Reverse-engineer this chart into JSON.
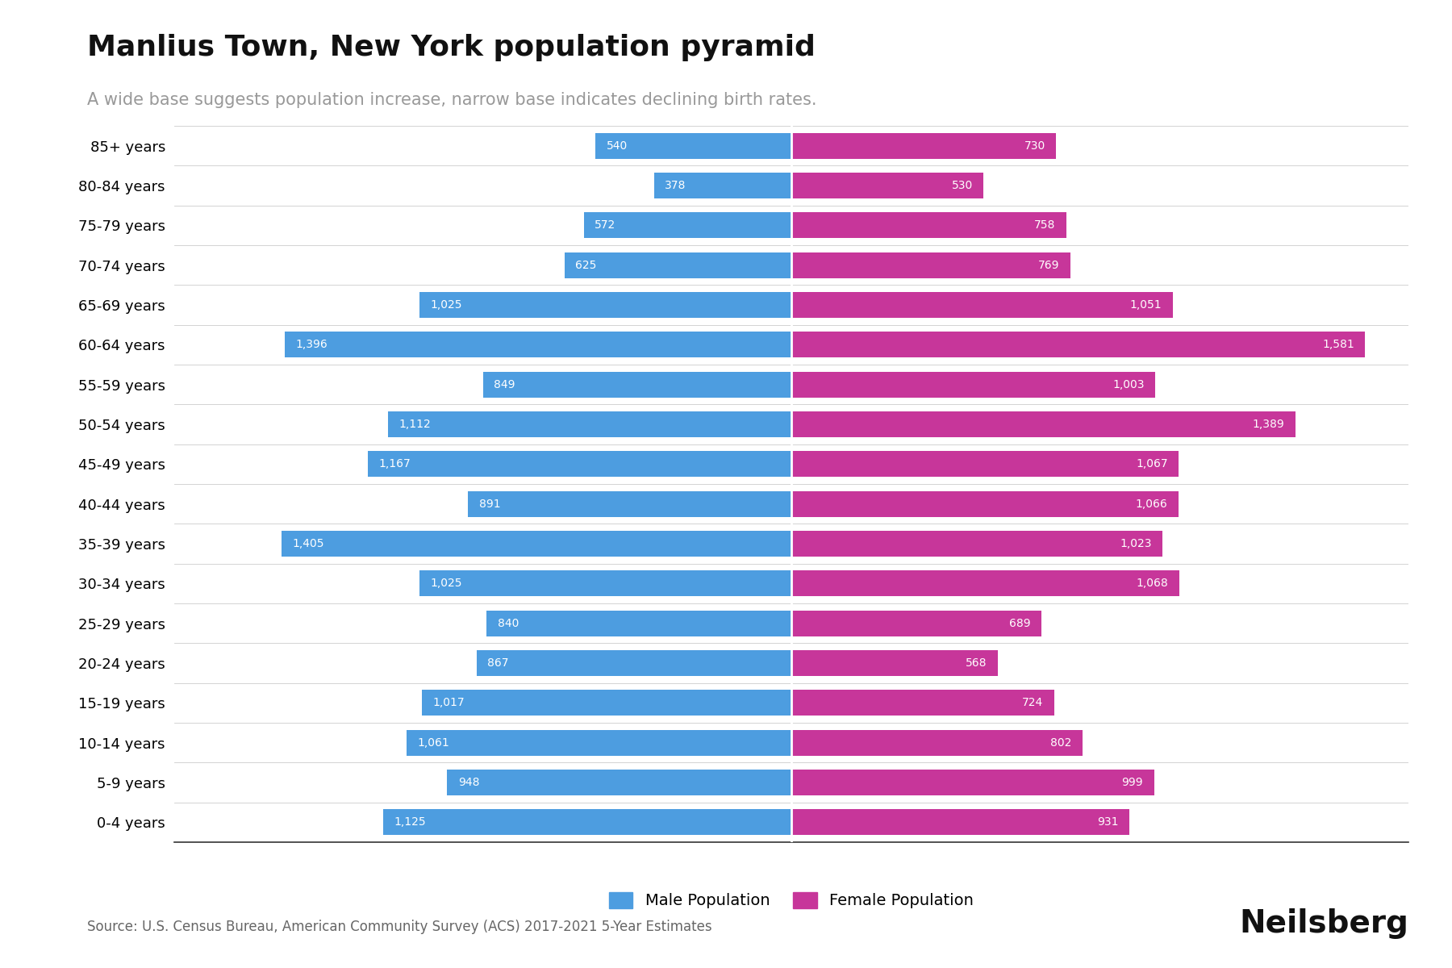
{
  "title": "Manlius Town, New York population pyramid",
  "subtitle": "A wide base suggests population increase, narrow base indicates declining birth rates.",
  "source": "Source: U.S. Census Bureau, American Community Survey (ACS) 2017-2021 5-Year Estimates",
  "branding": "Neilsberg",
  "age_groups": [
    "0-4 years",
    "5-9 years",
    "10-14 years",
    "15-19 years",
    "20-24 years",
    "25-29 years",
    "30-34 years",
    "35-39 years",
    "40-44 years",
    "45-49 years",
    "50-54 years",
    "55-59 years",
    "60-64 years",
    "65-69 years",
    "70-74 years",
    "75-79 years",
    "80-84 years",
    "85+ years"
  ],
  "male": [
    1125,
    948,
    1061,
    1017,
    867,
    840,
    1025,
    1405,
    891,
    1167,
    1112,
    849,
    1396,
    1025,
    625,
    572,
    378,
    540
  ],
  "female": [
    931,
    999,
    802,
    724,
    568,
    689,
    1068,
    1023,
    1066,
    1067,
    1389,
    1003,
    1581,
    1051,
    769,
    758,
    530,
    730
  ],
  "male_color": "#4D9DE0",
  "female_color": "#C7369A",
  "background_color": "#FFFFFF",
  "title_fontsize": 26,
  "subtitle_fontsize": 15,
  "tick_fontsize": 13,
  "bar_label_fontsize": 10,
  "legend_fontsize": 14,
  "source_fontsize": 12,
  "branding_fontsize": 28,
  "xlim": 1700
}
